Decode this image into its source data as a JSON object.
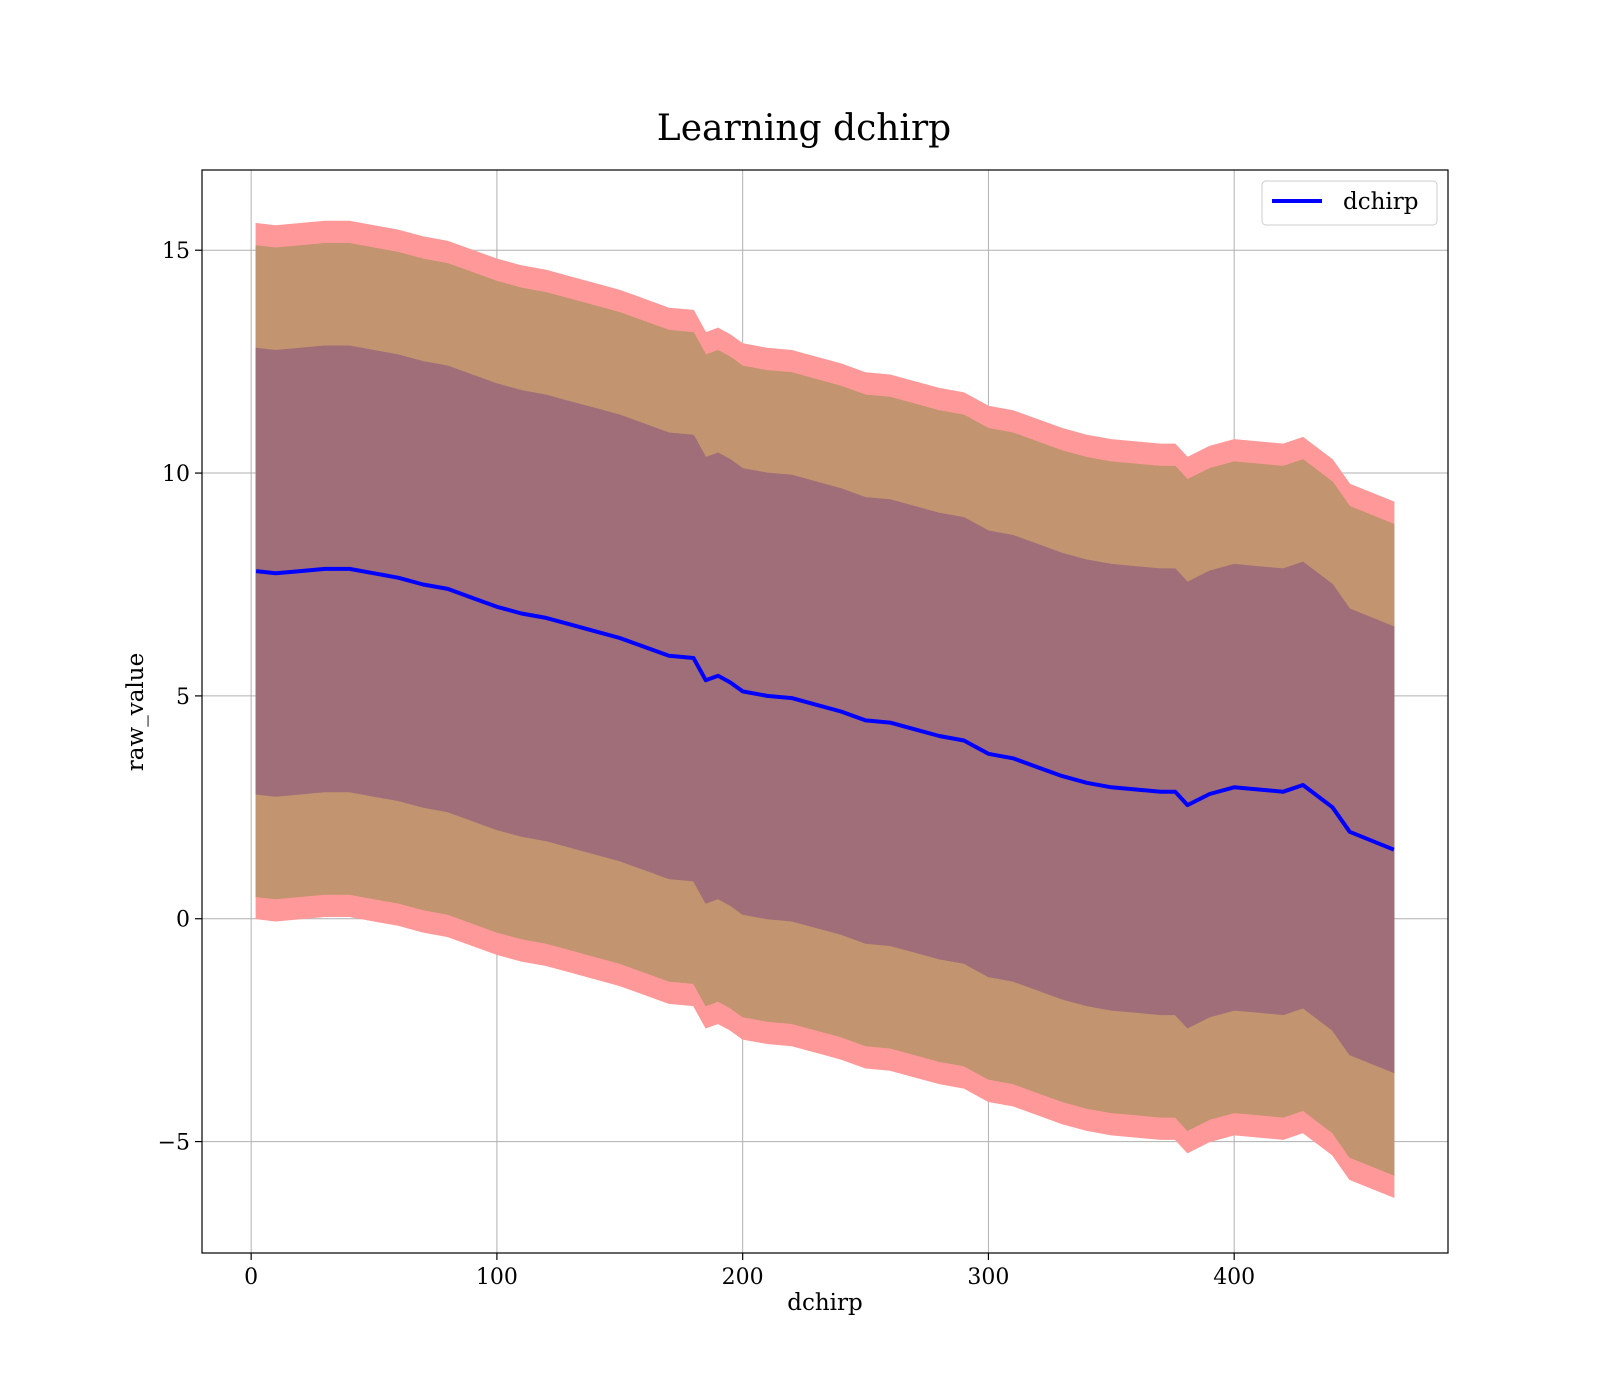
{
  "chart_data": {
    "type": "line",
    "title": "Learning dchirp",
    "xlabel": "dchirp",
    "ylabel": "raw_value",
    "xlim": [
      -20,
      487
    ],
    "ylim": [
      -7.5,
      16.8
    ],
    "x_ticks": [
      0,
      100,
      200,
      300,
      400
    ],
    "y_ticks": [
      -5,
      0,
      5,
      10,
      15
    ],
    "x_tick_labels": [
      "0",
      "100",
      "200",
      "300",
      "400"
    ],
    "y_tick_labels": [
      "−5",
      "0",
      "5",
      "10",
      "15"
    ],
    "grid": true,
    "legend_position": "top-right",
    "colors": {
      "line": "#0000ff",
      "band_outer": "#ff9999",
      "band_middle": "#c2946f",
      "band_inner": "#a06e78"
    },
    "x": [
      2,
      10,
      20,
      30,
      40,
      50,
      60,
      70,
      80,
      90,
      100,
      110,
      120,
      130,
      140,
      150,
      160,
      170,
      180,
      185,
      190,
      195,
      200,
      210,
      220,
      230,
      240,
      250,
      260,
      270,
      280,
      290,
      300,
      310,
      320,
      330,
      340,
      350,
      360,
      370,
      376,
      381,
      390,
      400,
      410,
      420,
      428,
      440,
      447,
      465
    ],
    "series": [
      {
        "name": "dchirp",
        "values": [
          7.8,
          7.75,
          7.8,
          7.85,
          7.85,
          7.75,
          7.65,
          7.5,
          7.4,
          7.2,
          7.0,
          6.85,
          6.75,
          6.6,
          6.45,
          6.3,
          6.1,
          5.9,
          5.85,
          5.35,
          5.45,
          5.3,
          5.1,
          5.0,
          4.95,
          4.8,
          4.65,
          4.45,
          4.4,
          4.25,
          4.1,
          4.0,
          3.7,
          3.6,
          3.4,
          3.2,
          3.05,
          2.95,
          2.9,
          2.85,
          2.85,
          2.55,
          2.8,
          2.95,
          2.9,
          2.85,
          3.0,
          2.5,
          1.95,
          1.55
        ]
      }
    ],
    "bands": [
      {
        "level": "outer",
        "width": 7.8
      },
      {
        "level": "middle",
        "width": 7.3
      },
      {
        "level": "inner",
        "width": 5.0
      }
    ]
  }
}
